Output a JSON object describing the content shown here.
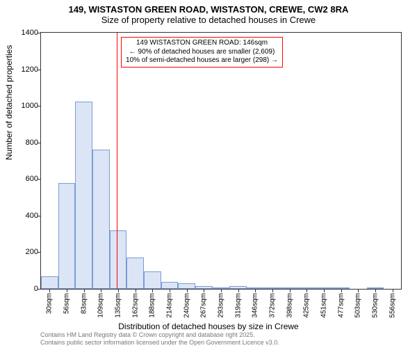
{
  "title": {
    "main": "149, WISTASTON GREEN ROAD, WISTASTON, CREWE, CW2 8RA",
    "sub": "Size of property relative to detached houses in Crewe"
  },
  "axes": {
    "ylabel": "Number of detached properties",
    "xlabel": "Distribution of detached houses by size in Crewe",
    "ylim": [
      0,
      1400
    ],
    "ytick_step": 200,
    "yticks": [
      0,
      200,
      400,
      600,
      800,
      1000,
      1200,
      1400
    ],
    "xticks": [
      "30sqm",
      "56sqm",
      "83sqm",
      "109sqm",
      "135sqm",
      "162sqm",
      "188sqm",
      "214sqm",
      "240sqm",
      "267sqm",
      "293sqm",
      "319sqm",
      "346sqm",
      "372sqm",
      "398sqm",
      "425sqm",
      "451sqm",
      "477sqm",
      "503sqm",
      "530sqm",
      "556sqm"
    ],
    "tick_fontsize": 11,
    "label_fontsize": 12
  },
  "histogram": {
    "type": "histogram",
    "values": [
      70,
      580,
      1025,
      760,
      320,
      170,
      95,
      40,
      30,
      15,
      8,
      15,
      4,
      6,
      4,
      2,
      2,
      3,
      0,
      2,
      0
    ],
    "bar_fill": "#dbe5f5",
    "bar_border": "#7a9cd4",
    "bar_width_ratio": 1.0
  },
  "reference_line": {
    "value_sqm": 146,
    "position_index": 4.42,
    "color": "#ff0000"
  },
  "annotation": {
    "lines": [
      "149 WISTASTON GREEN ROAD: 146sqm",
      "← 90% of detached houses are smaller (2,609)",
      "10% of semi-detached houses are larger (298) →"
    ],
    "border_color": "#ff0000",
    "background": "#ffffff",
    "fontsize": 10
  },
  "footnote": {
    "line1": "Contains HM Land Registry data © Crown copyright and database right 2025.",
    "line2": "Contains public sector information licensed under the Open Government Licence v3.0."
  },
  "colors": {
    "background": "#ffffff",
    "axis": "#333333",
    "footnote": "#777777"
  },
  "title_fontsize": 13
}
